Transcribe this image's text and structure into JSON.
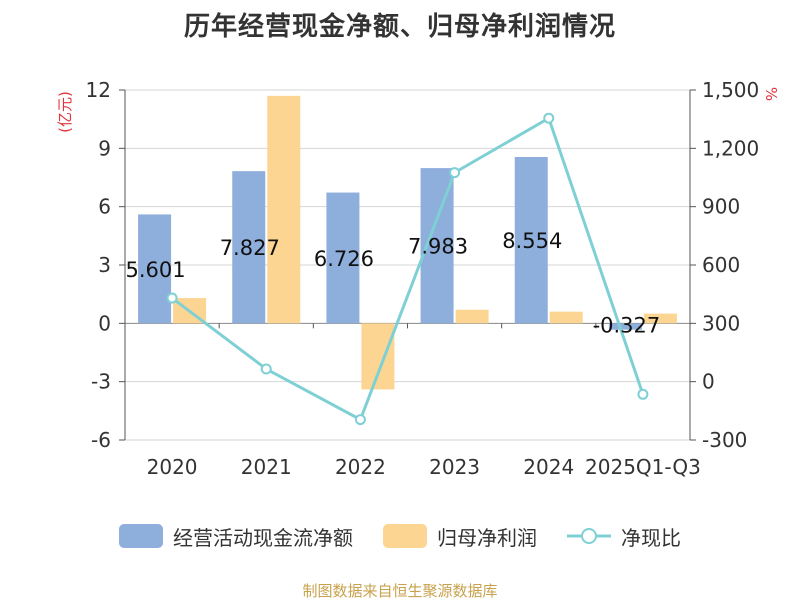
{
  "title": "历年经营现金净额、归母净利润情况",
  "footer": "制图数据来自恒生聚源数据库",
  "chart_data": {
    "type": "bar",
    "title": "历年经营现金净额、归母净利润情况",
    "categories": [
      "2020",
      "2021",
      "2022",
      "2023",
      "2024",
      "2025Q1-Q3"
    ],
    "ylabel_left": "(亿元)",
    "ylabel_right": "%",
    "ylim_left": [
      -6,
      12
    ],
    "yticks_left": [
      "-6",
      "-3",
      "0",
      "3",
      "6",
      "9",
      "12"
    ],
    "ytick_values_left": [
      -6,
      -3,
      0,
      3,
      6,
      9,
      12
    ],
    "ylim_right": [
      -300,
      1500
    ],
    "yticks_right": [
      "-300",
      "0",
      "300",
      "600",
      "900",
      "1,200",
      "1,500"
    ],
    "ytick_values_right": [
      -300,
      0,
      300,
      600,
      900,
      1200,
      1500
    ],
    "grid": true,
    "legend_position": "bottom",
    "series": [
      {
        "name": "经营活动现金流净额",
        "type": "bar",
        "axis": "left",
        "color": "#8eaedc",
        "values": [
          5.601,
          7.827,
          6.726,
          7.983,
          8.554,
          -0.327
        ],
        "labels": [
          "5.601",
          "7.827",
          "6.726",
          "7.983",
          "8.554",
          "-0.327"
        ]
      },
      {
        "name": "归母净利润",
        "type": "bar",
        "axis": "left",
        "color": "#fdd593",
        "values": [
          1.3,
          11.7,
          -3.4,
          0.7,
          0.6,
          0.5
        ]
      },
      {
        "name": "净现比",
        "type": "line",
        "axis": "right",
        "color": "#7fd0d4",
        "values": [
          430,
          65,
          -195,
          1075,
          1355,
          -65
        ]
      }
    ]
  }
}
